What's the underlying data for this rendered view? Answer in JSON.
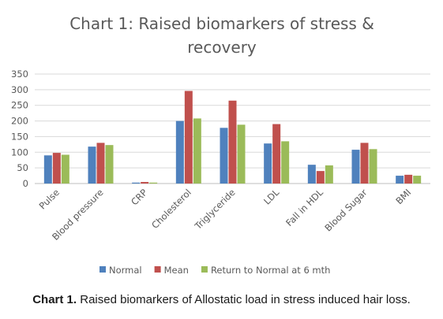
{
  "chart_data": {
    "type": "bar",
    "title_line1": "Chart 1: Raised biomarkers of stress &",
    "title_line2": "recovery",
    "categories": [
      "Pulse",
      "Blood pressure",
      "CRP",
      "Cholesterol",
      "Triglyceride",
      "LDL",
      "Fall in HDL",
      "Blood Sugar",
      "BMI"
    ],
    "series": [
      {
        "name": "Normal",
        "color": "#4f81bd",
        "values": [
          90,
          118,
          3,
          200,
          178,
          128,
          60,
          108,
          25
        ]
      },
      {
        "name": "Mean",
        "color": "#c0504d",
        "values": [
          98,
          130,
          5,
          296,
          265,
          190,
          40,
          130,
          28
        ]
      },
      {
        "name": "Return to Normal at 6 mth",
        "color": "#9bbb59",
        "values": [
          92,
          123,
          3,
          208,
          188,
          135,
          58,
          110,
          25
        ]
      }
    ],
    "yticks": [
      "0",
      "50",
      "100",
      "150",
      "200",
      "250",
      "300",
      "350"
    ],
    "ylim": [
      0,
      350
    ],
    "grid": true,
    "legend": "bottom"
  },
  "caption": {
    "label": "Chart 1.",
    "text": " Raised biomarkers of Allostatic load in stress induced hair loss."
  }
}
